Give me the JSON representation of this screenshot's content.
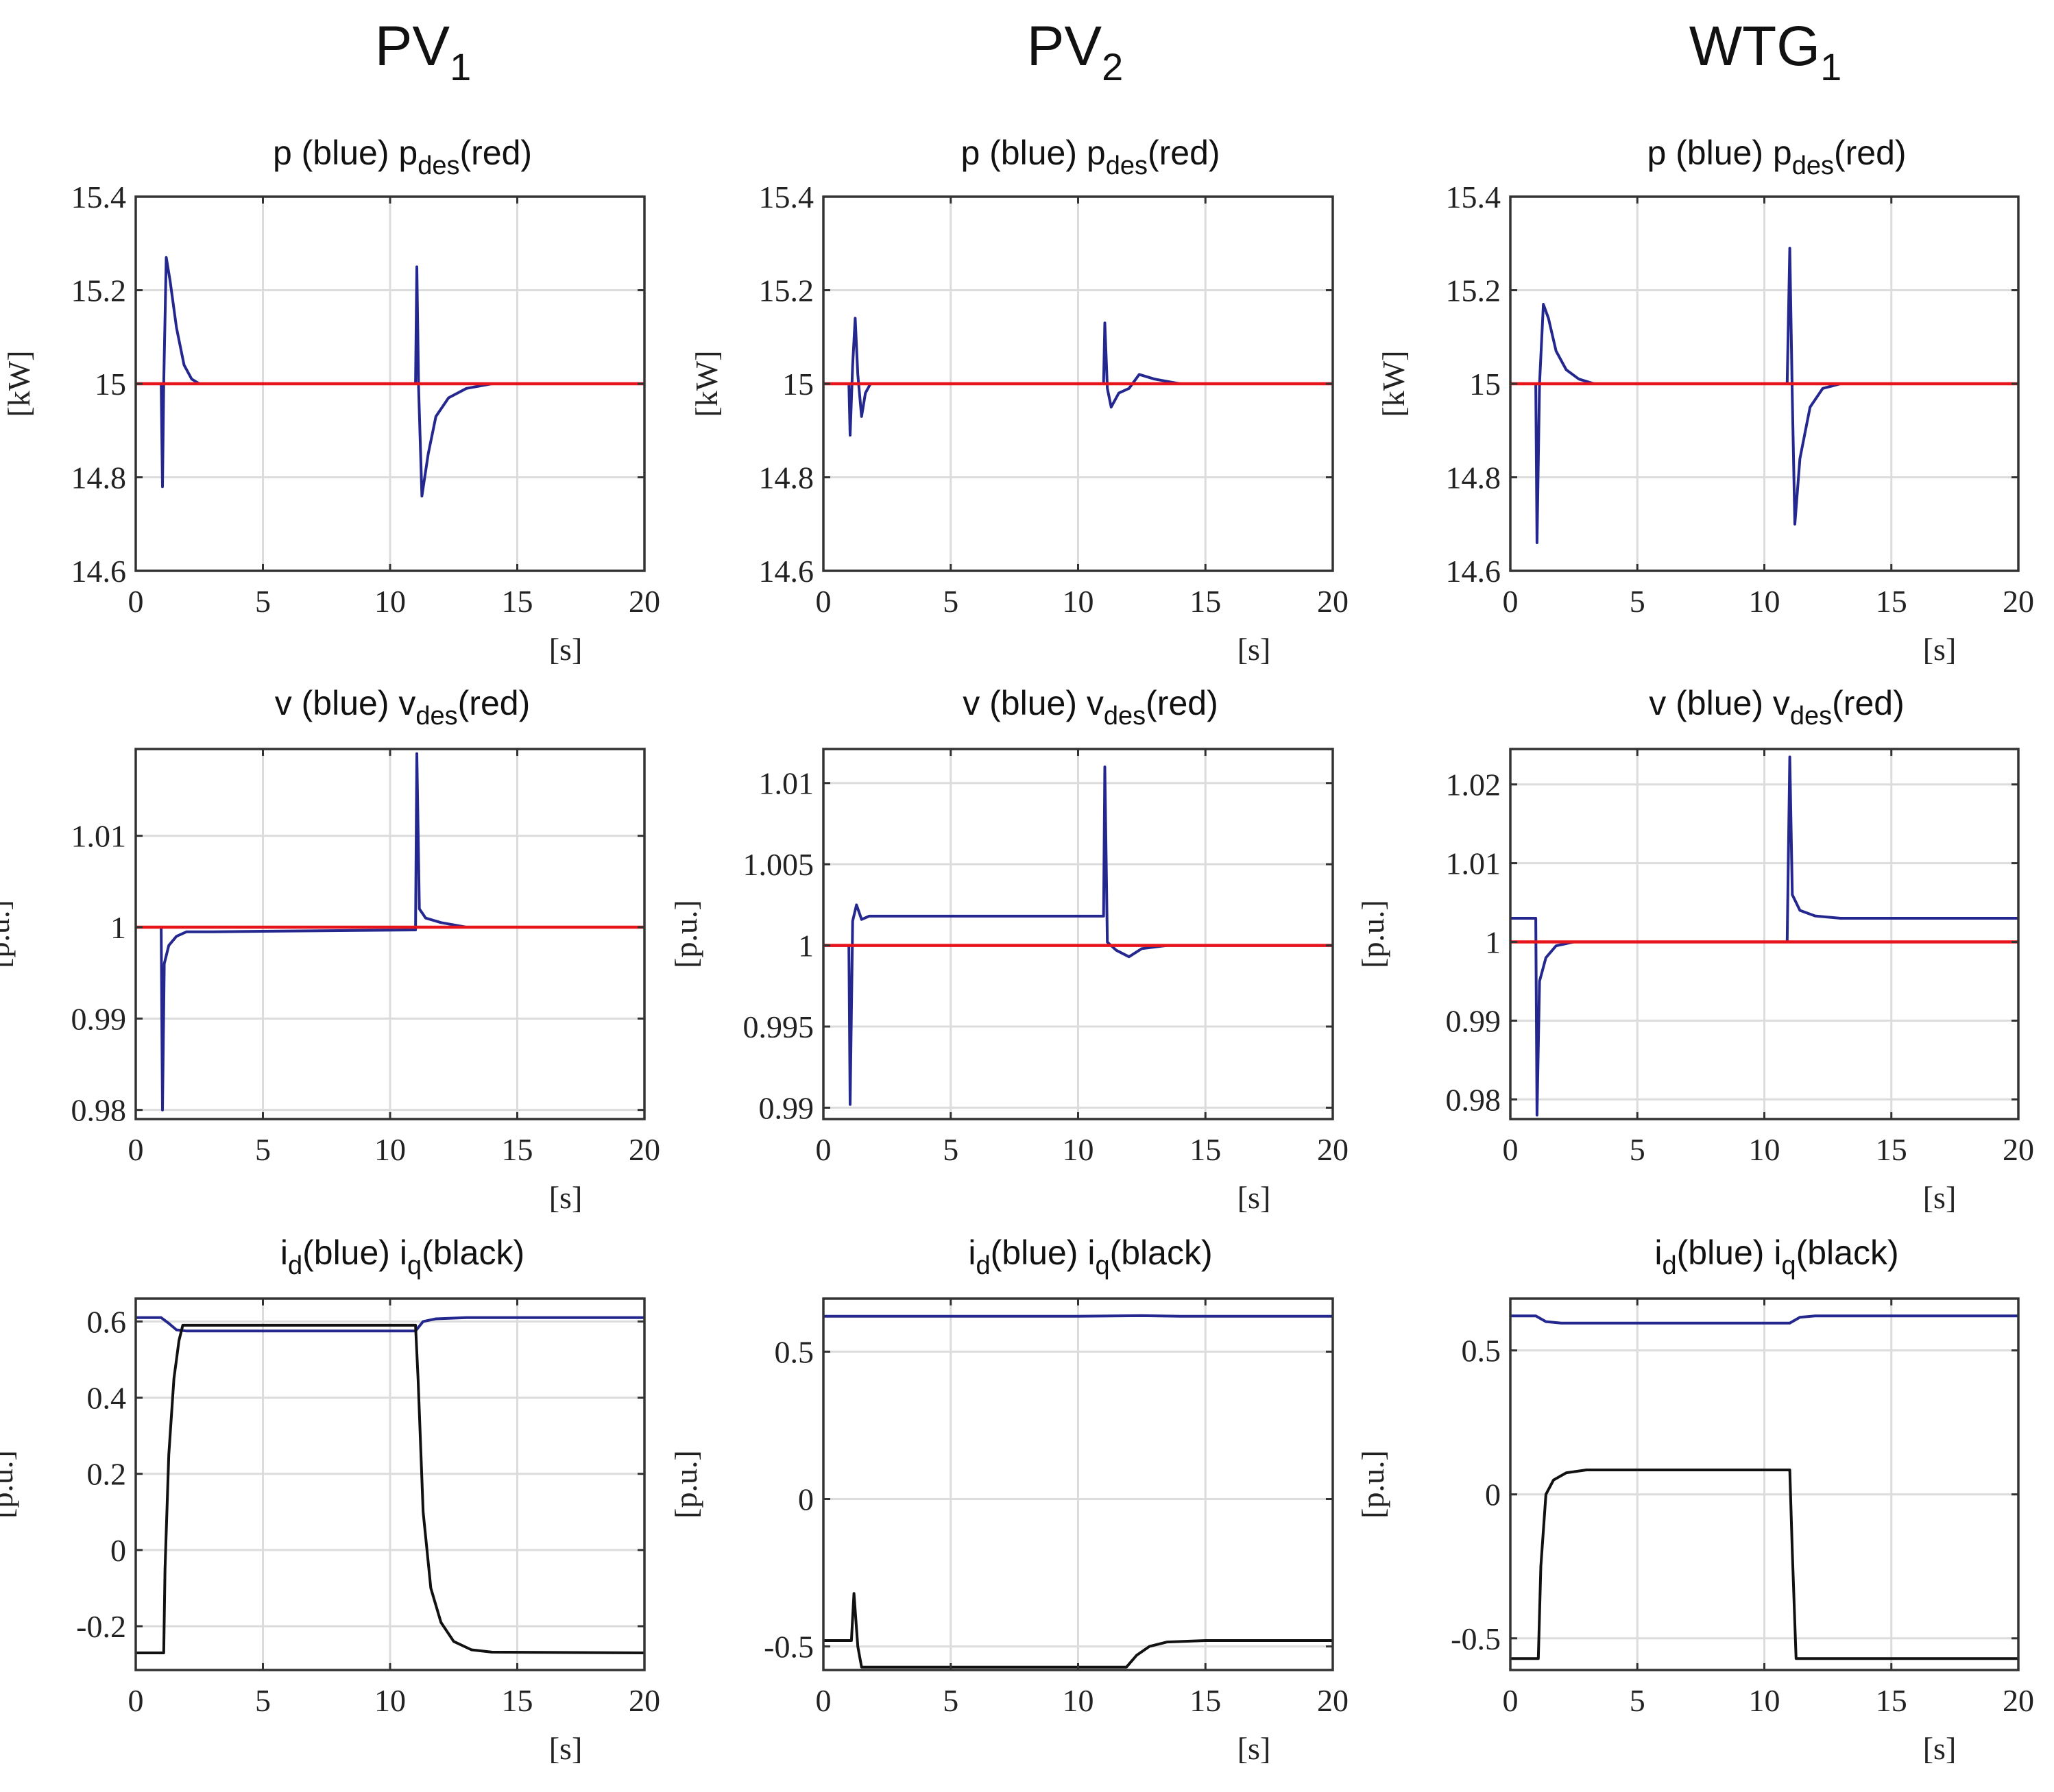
{
  "columns": [
    {
      "name": "PV",
      "sub": "1"
    },
    {
      "name": "PV",
      "sub": "2"
    },
    {
      "name": "WTG",
      "sub": "1"
    }
  ],
  "row_titles": [
    {
      "a": "p",
      "a_sub": "",
      "a_note": "(blue)",
      "b": "p",
      "b_sub": "des",
      "b_note": "(red)"
    },
    {
      "a": "v",
      "a_sub": "",
      "a_note": "(blue)",
      "b": "v",
      "b_sub": "des",
      "b_note": "(red)"
    },
    {
      "a": "i",
      "a_sub": "d",
      "a_note": "(blue)",
      "b": "i",
      "b_sub": "q",
      "b_note": "(black)"
    }
  ],
  "row_ylabels": [
    "[kW]",
    "[p.u.]",
    "[p.u.]"
  ],
  "xlabel": "[s]",
  "colors": {
    "blue": "#24288e",
    "red": "#e8141b",
    "black": "#111111",
    "grid": "#dcdcdc",
    "axis": "#333333"
  },
  "chart_data": [
    {
      "type": "line",
      "column": "PV1",
      "row": "p",
      "xlim": [
        0,
        20
      ],
      "ylim": [
        14.6,
        15.4
      ],
      "xticks": [
        0,
        5,
        10,
        15,
        20
      ],
      "yticks": [
        14.6,
        14.8,
        15,
        15.2,
        15.4
      ],
      "ytick_labels": [
        "14.6",
        "14.8",
        "15",
        "15.2",
        "15.4"
      ],
      "series": [
        {
          "color": "blue",
          "points": [
            [
              0,
              15
            ],
            [
              1.0,
              15
            ],
            [
              1.05,
              14.78
            ],
            [
              1.1,
              15.0
            ],
            [
              1.2,
              15.27
            ],
            [
              1.35,
              15.22
            ],
            [
              1.6,
              15.12
            ],
            [
              1.9,
              15.04
            ],
            [
              2.2,
              15.01
            ],
            [
              2.5,
              15.0
            ],
            [
              3,
              15.0
            ],
            [
              7,
              15.0
            ],
            [
              10,
              15.0
            ],
            [
              11.0,
              15.0
            ],
            [
              11.05,
              15.25
            ],
            [
              11.12,
              14.99
            ],
            [
              11.25,
              14.76
            ],
            [
              11.5,
              14.85
            ],
            [
              11.8,
              14.93
            ],
            [
              12.3,
              14.97
            ],
            [
              13,
              14.99
            ],
            [
              14,
              15.0
            ],
            [
              20,
              15.0
            ]
          ]
        },
        {
          "color": "red",
          "points": [
            [
              0,
              15
            ],
            [
              20,
              15
            ]
          ]
        }
      ]
    },
    {
      "type": "line",
      "column": "PV2",
      "row": "p",
      "xlim": [
        0,
        20
      ],
      "ylim": [
        14.6,
        15.4
      ],
      "xticks": [
        0,
        5,
        10,
        15,
        20
      ],
      "yticks": [
        14.6,
        14.8,
        15,
        15.2,
        15.4
      ],
      "ytick_labels": [
        "14.6",
        "14.8",
        "15",
        "15.2",
        "15.4"
      ],
      "series": [
        {
          "color": "blue",
          "points": [
            [
              0,
              15
            ],
            [
              1.0,
              15
            ],
            [
              1.05,
              14.89
            ],
            [
              1.15,
              15.04
            ],
            [
              1.25,
              15.14
            ],
            [
              1.35,
              15.02
            ],
            [
              1.5,
              14.93
            ],
            [
              1.65,
              14.98
            ],
            [
              1.85,
              15.0
            ],
            [
              2.2,
              15.0
            ],
            [
              11.0,
              15.0
            ],
            [
              11.05,
              15.13
            ],
            [
              11.15,
              14.99
            ],
            [
              11.3,
              14.95
            ],
            [
              11.6,
              14.98
            ],
            [
              12.0,
              14.99
            ],
            [
              12.4,
              15.02
            ],
            [
              13.0,
              15.01
            ],
            [
              14,
              15.0
            ],
            [
              20,
              15.0
            ]
          ]
        },
        {
          "color": "red",
          "points": [
            [
              0,
              15
            ],
            [
              20,
              15
            ]
          ]
        }
      ]
    },
    {
      "type": "line",
      "column": "WTG1",
      "row": "p",
      "xlim": [
        0,
        20
      ],
      "ylim": [
        14.6,
        15.4
      ],
      "xticks": [
        0,
        5,
        10,
        15,
        20
      ],
      "yticks": [
        14.6,
        14.8,
        15,
        15.2,
        15.4
      ],
      "ytick_labels": [
        "14.6",
        "14.8",
        "15",
        "15.2",
        "15.4"
      ],
      "series": [
        {
          "color": "blue",
          "points": [
            [
              0,
              15
            ],
            [
              1.0,
              15
            ],
            [
              1.05,
              14.66
            ],
            [
              1.15,
              15.0
            ],
            [
              1.3,
              15.17
            ],
            [
              1.5,
              15.14
            ],
            [
              1.8,
              15.07
            ],
            [
              2.2,
              15.03
            ],
            [
              2.7,
              15.01
            ],
            [
              3.3,
              15.0
            ],
            [
              10.9,
              15.0
            ],
            [
              11.0,
              15.29
            ],
            [
              11.1,
              14.97
            ],
            [
              11.2,
              14.7
            ],
            [
              11.4,
              14.84
            ],
            [
              11.8,
              14.95
            ],
            [
              12.3,
              14.99
            ],
            [
              13,
              15.0
            ],
            [
              20,
              15.0
            ]
          ]
        },
        {
          "color": "red",
          "points": [
            [
              0,
              15
            ],
            [
              20,
              15
            ]
          ]
        }
      ]
    },
    {
      "type": "line",
      "column": "PV1",
      "row": "v",
      "xlim": [
        0,
        20
      ],
      "ylim": [
        0.979,
        1.0195
      ],
      "xticks": [
        0,
        5,
        10,
        15,
        20
      ],
      "yticks": [
        0.98,
        0.99,
        1.0,
        1.01
      ],
      "ytick_labels": [
        "0.98",
        "0.99",
        "1",
        "1.01"
      ],
      "series": [
        {
          "color": "blue",
          "points": [
            [
              0,
              1.0
            ],
            [
              1.0,
              1.0
            ],
            [
              1.05,
              0.98
            ],
            [
              1.12,
              0.996
            ],
            [
              1.3,
              0.998
            ],
            [
              1.6,
              0.999
            ],
            [
              2.0,
              0.9995
            ],
            [
              3,
              0.9995
            ],
            [
              11.0,
              0.9997
            ],
            [
              11.05,
              1.019
            ],
            [
              11.15,
              1.002
            ],
            [
              11.4,
              1.001
            ],
            [
              12,
              1.0005
            ],
            [
              13,
              1.0
            ],
            [
              20,
              1.0
            ]
          ]
        },
        {
          "color": "red",
          "points": [
            [
              0,
              1.0
            ],
            [
              20,
              1.0
            ]
          ]
        }
      ]
    },
    {
      "type": "line",
      "column": "PV2",
      "row": "v",
      "xlim": [
        0,
        20
      ],
      "ylim": [
        0.9893,
        1.0121
      ],
      "xticks": [
        0,
        5,
        10,
        15,
        20
      ],
      "yticks": [
        0.99,
        0.995,
        1.0,
        1.005,
        1.01
      ],
      "ytick_labels": [
        "0.99",
        "0.995",
        "1",
        "1.005",
        "1.01"
      ],
      "series": [
        {
          "color": "blue",
          "points": [
            [
              0,
              1.0
            ],
            [
              1.0,
              1.0
            ],
            [
              1.05,
              0.9902
            ],
            [
              1.15,
              1.0015
            ],
            [
              1.3,
              1.0025
            ],
            [
              1.5,
              1.0016
            ],
            [
              1.8,
              1.0018
            ],
            [
              3,
              1.0018
            ],
            [
              11.0,
              1.0018
            ],
            [
              11.05,
              1.011
            ],
            [
              11.15,
              1.0002
            ],
            [
              11.5,
              0.9997
            ],
            [
              12.0,
              0.9993
            ],
            [
              12.5,
              0.9998
            ],
            [
              13.5,
              1.0
            ],
            [
              20,
              1.0
            ]
          ]
        },
        {
          "color": "red",
          "points": [
            [
              0,
              1.0
            ],
            [
              20,
              1.0
            ]
          ]
        }
      ]
    },
    {
      "type": "line",
      "column": "WTG1",
      "row": "v",
      "xlim": [
        0,
        20
      ],
      "ylim": [
        0.9775,
        1.0245
      ],
      "xticks": [
        0,
        5,
        10,
        15,
        20
      ],
      "yticks": [
        0.98,
        0.99,
        1.0,
        1.01,
        1.02
      ],
      "ytick_labels": [
        "0.98",
        "0.99",
        "1",
        "1.01",
        "1.02"
      ],
      "series": [
        {
          "color": "blue",
          "points": [
            [
              0,
              1.003
            ],
            [
              1.0,
              1.003
            ],
            [
              1.05,
              0.978
            ],
            [
              1.15,
              0.995
            ],
            [
              1.4,
              0.998
            ],
            [
              1.8,
              0.9995
            ],
            [
              2.5,
              1.0
            ],
            [
              10.9,
              1.0
            ],
            [
              11.0,
              1.0235
            ],
            [
              11.1,
              1.006
            ],
            [
              11.4,
              1.004
            ],
            [
              12,
              1.0033
            ],
            [
              13,
              1.003
            ],
            [
              20,
              1.003
            ]
          ]
        },
        {
          "color": "red",
          "points": [
            [
              0,
              1.0
            ],
            [
              20,
              1.0
            ]
          ]
        }
      ]
    },
    {
      "type": "line",
      "column": "PV1",
      "row": "i",
      "xlim": [
        0,
        20
      ],
      "ylim": [
        -0.315,
        0.66
      ],
      "xticks": [
        0,
        5,
        10,
        15,
        20
      ],
      "yticks": [
        -0.2,
        0,
        0.2,
        0.4,
        0.6
      ],
      "ytick_labels": [
        "-0.2",
        "0",
        "0.2",
        "0.4",
        "0.6"
      ],
      "series": [
        {
          "color": "blue",
          "points": [
            [
              0,
              0.61
            ],
            [
              1.0,
              0.61
            ],
            [
              1.3,
              0.595
            ],
            [
              1.6,
              0.578
            ],
            [
              2.0,
              0.575
            ],
            [
              11.0,
              0.575
            ],
            [
              11.3,
              0.6
            ],
            [
              11.8,
              0.607
            ],
            [
              13,
              0.61
            ],
            [
              20,
              0.61
            ]
          ]
        },
        {
          "color": "black",
          "points": [
            [
              0,
              -0.27
            ],
            [
              1.1,
              -0.27
            ],
            [
              1.15,
              -0.05
            ],
            [
              1.3,
              0.25
            ],
            [
              1.5,
              0.45
            ],
            [
              1.7,
              0.55
            ],
            [
              1.85,
              0.59
            ],
            [
              11.0,
              0.59
            ],
            [
              11.1,
              0.45
            ],
            [
              11.3,
              0.1
            ],
            [
              11.6,
              -0.1
            ],
            [
              12.0,
              -0.19
            ],
            [
              12.5,
              -0.24
            ],
            [
              13.2,
              -0.262
            ],
            [
              14,
              -0.268
            ],
            [
              20,
              -0.27
            ]
          ]
        }
      ]
    },
    {
      "type": "line",
      "column": "PV2",
      "row": "i",
      "xlim": [
        0,
        20
      ],
      "ylim": [
        -0.58,
        0.68
      ],
      "xticks": [
        0,
        5,
        10,
        15,
        20
      ],
      "yticks": [
        -0.5,
        0,
        0.5
      ],
      "ytick_labels": [
        "-0.5",
        "0",
        "0.5"
      ],
      "series": [
        {
          "color": "blue",
          "points": [
            [
              0,
              0.62
            ],
            [
              10,
              0.62
            ],
            [
              12.5,
              0.622
            ],
            [
              14,
              0.62
            ],
            [
              20,
              0.62
            ]
          ]
        },
        {
          "color": "black",
          "points": [
            [
              0,
              -0.48
            ],
            [
              1.1,
              -0.48
            ],
            [
              1.2,
              -0.32
            ],
            [
              1.35,
              -0.5
            ],
            [
              1.5,
              -0.57
            ],
            [
              11.9,
              -0.57
            ],
            [
              12.3,
              -0.53
            ],
            [
              12.8,
              -0.5
            ],
            [
              13.5,
              -0.485
            ],
            [
              15,
              -0.48
            ],
            [
              20,
              -0.48
            ]
          ]
        }
      ]
    },
    {
      "type": "line",
      "column": "WTG1",
      "row": "i",
      "xlim": [
        0,
        20
      ],
      "ylim": [
        -0.61,
        0.68
      ],
      "xticks": [
        0,
        5,
        10,
        15,
        20
      ],
      "yticks": [
        -0.5,
        0,
        0.5
      ],
      "ytick_labels": [
        "-0.5",
        "0",
        "0.5"
      ],
      "series": [
        {
          "color": "blue",
          "points": [
            [
              0,
              0.62
            ],
            [
              1.0,
              0.62
            ],
            [
              1.4,
              0.6
            ],
            [
              2.0,
              0.595
            ],
            [
              11.0,
              0.595
            ],
            [
              11.4,
              0.615
            ],
            [
              12,
              0.62
            ],
            [
              20,
              0.62
            ]
          ]
        },
        {
          "color": "black",
          "points": [
            [
              0,
              -0.57
            ],
            [
              1.1,
              -0.57
            ],
            [
              1.2,
              -0.25
            ],
            [
              1.4,
              0.0
            ],
            [
              1.7,
              0.05
            ],
            [
              2.2,
              0.075
            ],
            [
              3,
              0.085
            ],
            [
              11.0,
              0.085
            ],
            [
              11.1,
              -0.2
            ],
            [
              11.25,
              -0.57
            ],
            [
              20,
              -0.57
            ]
          ]
        }
      ]
    }
  ]
}
